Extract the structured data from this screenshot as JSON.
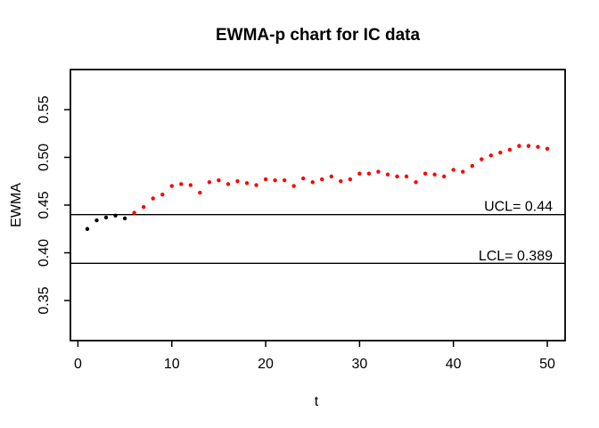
{
  "chart_data": {
    "type": "scatter",
    "title": "EWMA-p chart for IC data",
    "xlabel": "t",
    "ylabel": "EWMA",
    "x_ticks": [
      0,
      10,
      20,
      30,
      40,
      50
    ],
    "x_tick_labels": [
      "0",
      "10",
      "20",
      "30",
      "40",
      "50"
    ],
    "y_ticks": [
      0.35,
      0.4,
      0.45,
      0.5,
      0.55
    ],
    "y_tick_labels": [
      "0.35",
      "0.40",
      "0.45",
      "0.50",
      "0.55"
    ],
    "xlim": [
      -0.8,
      51.9
    ],
    "ylim": [
      0.308,
      0.592
    ],
    "grid": false,
    "legend": null,
    "control_limits": {
      "ucl": {
        "value": 0.44,
        "label": "UCL= 0.44"
      },
      "lcl": {
        "value": 0.389,
        "label": "LCL= 0.389"
      }
    },
    "point_rule": "points with EWMA value above UCL are drawn out-of-control color, others in-control color",
    "colors": {
      "in_control": "#000000",
      "out_of_control": "#ff0000",
      "axis": "#000000",
      "limit_line": "#000000",
      "background": "#ffffff"
    },
    "series": [
      {
        "name": "EWMA statistic",
        "x": [
          1,
          2,
          3,
          4,
          5,
          6,
          7,
          8,
          9,
          10,
          11,
          12,
          13,
          14,
          15,
          16,
          17,
          18,
          19,
          20,
          21,
          22,
          23,
          24,
          25,
          26,
          27,
          28,
          29,
          30,
          31,
          32,
          33,
          34,
          35,
          36,
          37,
          38,
          39,
          40,
          41,
          42,
          43,
          44,
          45,
          46,
          47,
          48,
          49,
          50
        ],
        "y": [
          0.425,
          0.434,
          0.437,
          0.439,
          0.436,
          0.442,
          0.448,
          0.457,
          0.461,
          0.47,
          0.472,
          0.471,
          0.463,
          0.474,
          0.476,
          0.472,
          0.475,
          0.473,
          0.471,
          0.477,
          0.476,
          0.476,
          0.47,
          0.478,
          0.474,
          0.477,
          0.48,
          0.475,
          0.477,
          0.483,
          0.483,
          0.485,
          0.482,
          0.48,
          0.48,
          0.474,
          0.483,
          0.482,
          0.48,
          0.487,
          0.485,
          0.491,
          0.498,
          0.502,
          0.505,
          0.508,
          0.512,
          0.512,
          0.511,
          0.509
        ]
      }
    ]
  }
}
